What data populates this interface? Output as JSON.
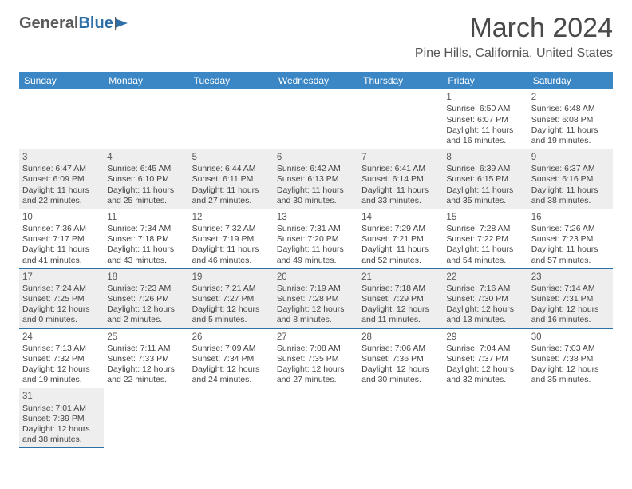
{
  "logo": {
    "text1": "General",
    "text2": "Blue"
  },
  "title": "March 2024",
  "subtitle": "Pine Hills, California, United States",
  "colors": {
    "header_bg": "#3b86c4",
    "header_text": "#ffffff",
    "rule": "#2f6fa8",
    "shaded": "#eeeeee",
    "body_text": "#444444",
    "logo_gray": "#5a5a5a",
    "logo_blue": "#2f6fa8"
  },
  "day_headers": [
    "Sunday",
    "Monday",
    "Tuesday",
    "Wednesday",
    "Thursday",
    "Friday",
    "Saturday"
  ],
  "layout": {
    "leading_blanks": 5,
    "days_in_month": 31,
    "shaded_rows": [
      1,
      3,
      5
    ]
  },
  "days": {
    "1": {
      "sunrise": "6:50 AM",
      "sunset": "6:07 PM",
      "daylight": "11 hours and 16 minutes."
    },
    "2": {
      "sunrise": "6:48 AM",
      "sunset": "6:08 PM",
      "daylight": "11 hours and 19 minutes."
    },
    "3": {
      "sunrise": "6:47 AM",
      "sunset": "6:09 PM",
      "daylight": "11 hours and 22 minutes."
    },
    "4": {
      "sunrise": "6:45 AM",
      "sunset": "6:10 PM",
      "daylight": "11 hours and 25 minutes."
    },
    "5": {
      "sunrise": "6:44 AM",
      "sunset": "6:11 PM",
      "daylight": "11 hours and 27 minutes."
    },
    "6": {
      "sunrise": "6:42 AM",
      "sunset": "6:13 PM",
      "daylight": "11 hours and 30 minutes."
    },
    "7": {
      "sunrise": "6:41 AM",
      "sunset": "6:14 PM",
      "daylight": "11 hours and 33 minutes."
    },
    "8": {
      "sunrise": "6:39 AM",
      "sunset": "6:15 PM",
      "daylight": "11 hours and 35 minutes."
    },
    "9": {
      "sunrise": "6:37 AM",
      "sunset": "6:16 PM",
      "daylight": "11 hours and 38 minutes."
    },
    "10": {
      "sunrise": "7:36 AM",
      "sunset": "7:17 PM",
      "daylight": "11 hours and 41 minutes."
    },
    "11": {
      "sunrise": "7:34 AM",
      "sunset": "7:18 PM",
      "daylight": "11 hours and 43 minutes."
    },
    "12": {
      "sunrise": "7:32 AM",
      "sunset": "7:19 PM",
      "daylight": "11 hours and 46 minutes."
    },
    "13": {
      "sunrise": "7:31 AM",
      "sunset": "7:20 PM",
      "daylight": "11 hours and 49 minutes."
    },
    "14": {
      "sunrise": "7:29 AM",
      "sunset": "7:21 PM",
      "daylight": "11 hours and 52 minutes."
    },
    "15": {
      "sunrise": "7:28 AM",
      "sunset": "7:22 PM",
      "daylight": "11 hours and 54 minutes."
    },
    "16": {
      "sunrise": "7:26 AM",
      "sunset": "7:23 PM",
      "daylight": "11 hours and 57 minutes."
    },
    "17": {
      "sunrise": "7:24 AM",
      "sunset": "7:25 PM",
      "daylight": "12 hours and 0 minutes."
    },
    "18": {
      "sunrise": "7:23 AM",
      "sunset": "7:26 PM",
      "daylight": "12 hours and 2 minutes."
    },
    "19": {
      "sunrise": "7:21 AM",
      "sunset": "7:27 PM",
      "daylight": "12 hours and 5 minutes."
    },
    "20": {
      "sunrise": "7:19 AM",
      "sunset": "7:28 PM",
      "daylight": "12 hours and 8 minutes."
    },
    "21": {
      "sunrise": "7:18 AM",
      "sunset": "7:29 PM",
      "daylight": "12 hours and 11 minutes."
    },
    "22": {
      "sunrise": "7:16 AM",
      "sunset": "7:30 PM",
      "daylight": "12 hours and 13 minutes."
    },
    "23": {
      "sunrise": "7:14 AM",
      "sunset": "7:31 PM",
      "daylight": "12 hours and 16 minutes."
    },
    "24": {
      "sunrise": "7:13 AM",
      "sunset": "7:32 PM",
      "daylight": "12 hours and 19 minutes."
    },
    "25": {
      "sunrise": "7:11 AM",
      "sunset": "7:33 PM",
      "daylight": "12 hours and 22 minutes."
    },
    "26": {
      "sunrise": "7:09 AM",
      "sunset": "7:34 PM",
      "daylight": "12 hours and 24 minutes."
    },
    "27": {
      "sunrise": "7:08 AM",
      "sunset": "7:35 PM",
      "daylight": "12 hours and 27 minutes."
    },
    "28": {
      "sunrise": "7:06 AM",
      "sunset": "7:36 PM",
      "daylight": "12 hours and 30 minutes."
    },
    "29": {
      "sunrise": "7:04 AM",
      "sunset": "7:37 PM",
      "daylight": "12 hours and 32 minutes."
    },
    "30": {
      "sunrise": "7:03 AM",
      "sunset": "7:38 PM",
      "daylight": "12 hours and 35 minutes."
    },
    "31": {
      "sunrise": "7:01 AM",
      "sunset": "7:39 PM",
      "daylight": "12 hours and 38 minutes."
    }
  },
  "labels": {
    "sunrise_prefix": "Sunrise: ",
    "sunset_prefix": "Sunset: ",
    "daylight_prefix": "Daylight: "
  }
}
